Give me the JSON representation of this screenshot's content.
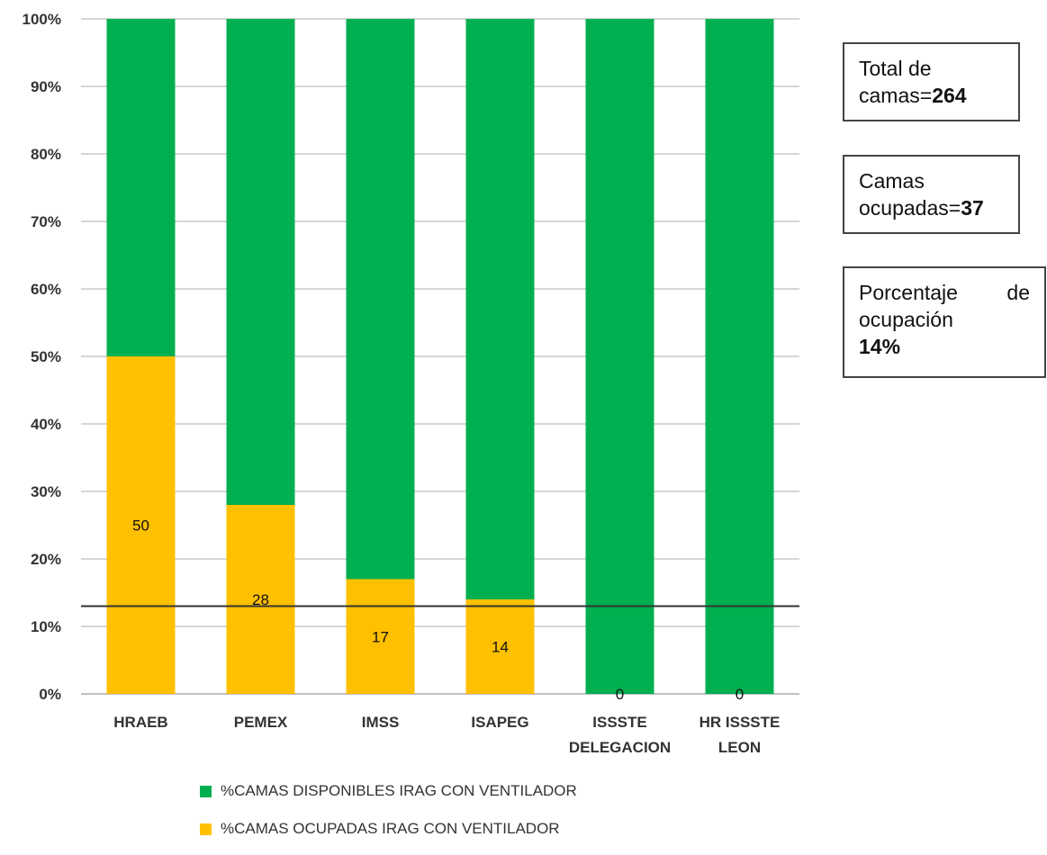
{
  "chart_data": {
    "type": "bar",
    "stacked": true,
    "categories": [
      "HRAEB",
      "PEMEX",
      "IMSS",
      "ISAPEG",
      "ISSSTE DELEGACION",
      "HR ISSSTE LEON"
    ],
    "category_lines": [
      [
        "HRAEB"
      ],
      [
        "PEMEX"
      ],
      [
        "IMSS"
      ],
      [
        "ISAPEG"
      ],
      [
        "ISSSTE",
        "DELEGACION"
      ],
      [
        "HR ISSSTE",
        "LEON"
      ]
    ],
    "series": [
      {
        "name": "%CAMAS OCUPADAS IRAG CON VENTILADOR",
        "color": "#FFC000",
        "values": [
          50,
          28,
          17,
          14,
          0,
          0
        ]
      },
      {
        "name": "%CAMAS DISPONIBLES IRAG  CON VENTILADOR",
        "color": "#00B050",
        "values": [
          50,
          72,
          83,
          86,
          100,
          100
        ]
      }
    ],
    "data_labels": [
      "50",
      "28",
      "17",
      "14",
      "0",
      "0"
    ],
    "y_ticks": [
      "0%",
      "10%",
      "20%",
      "30%",
      "40%",
      "50%",
      "60%",
      "70%",
      "80%",
      "90%",
      "100%"
    ],
    "ylim": [
      0,
      100
    ],
    "reference_line": 13,
    "grid": true,
    "legend_position": "bottom-left"
  },
  "info_boxes": {
    "total": {
      "text": "Total de camas=",
      "value": "264"
    },
    "ocupadas": {
      "text": "Camas ocupadas=",
      "value": "37"
    },
    "porcentaje": {
      "word1": "Porcentaje",
      "word2": "de",
      "line2": "ocupación",
      "value": "14%"
    }
  },
  "legend": {
    "items": [
      {
        "label": "%CAMAS DISPONIBLES IRAG  CON VENTILADOR",
        "color": "#00B050"
      },
      {
        "label": "%CAMAS OCUPADAS IRAG CON VENTILADOR",
        "color": "#FFC000"
      }
    ]
  }
}
